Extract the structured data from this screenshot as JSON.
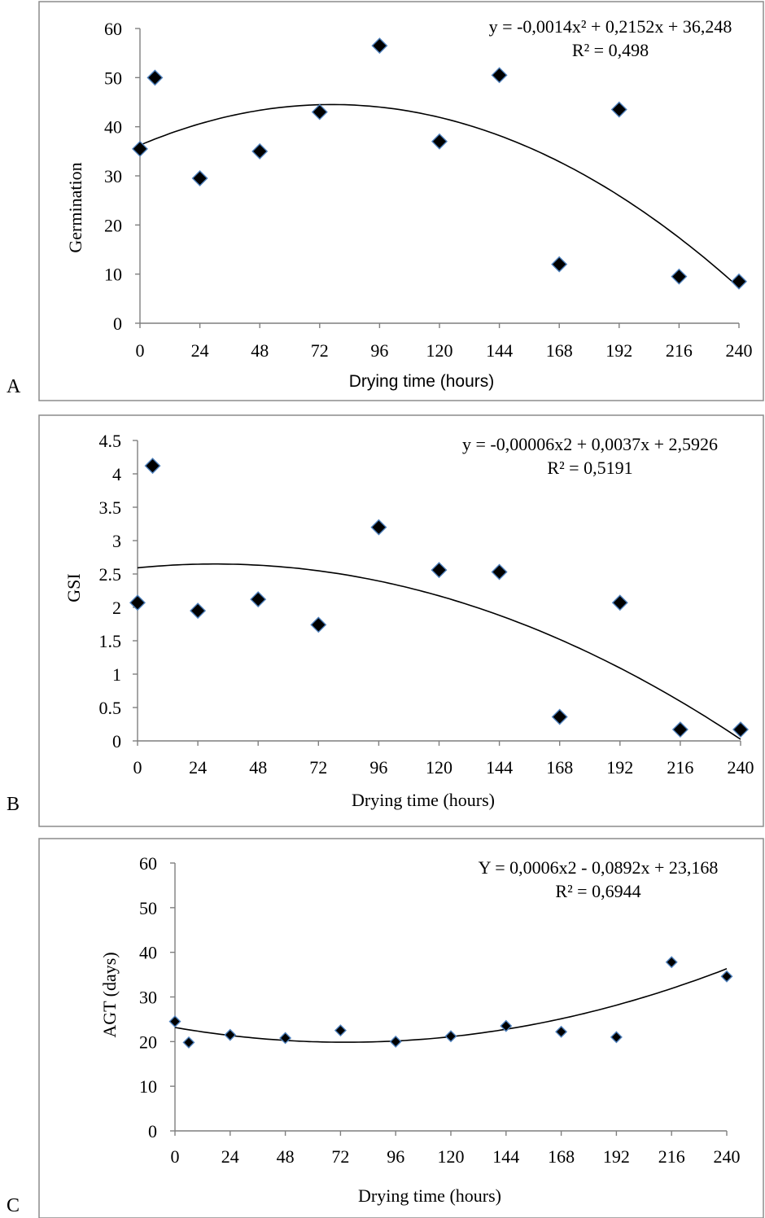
{
  "chart_data": [
    {
      "panel": "A",
      "type": "scatter",
      "title": "",
      "xlabel": "Drying time (hours)",
      "ylabel": "Germination",
      "xlim": [
        0,
        240
      ],
      "ylim": [
        0,
        60
      ],
      "x_ticks": [
        "0",
        "24",
        "48",
        "72",
        "96",
        "120",
        "144",
        "168",
        "192",
        "216",
        "240"
      ],
      "y_ticks": [
        "0",
        "10",
        "20",
        "30",
        "40",
        "50",
        "60"
      ],
      "trend_equation": "y = -0,0014x² + 0,2152x + 36,248",
      "r_squared": "R² = 0,498",
      "trend_coefficients": [
        -0.0014,
        0.2152,
        36.248
      ],
      "grid": false,
      "points": [
        {
          "x": 0,
          "y": 35.5
        },
        {
          "x": 6,
          "y": 50
        },
        {
          "x": 24,
          "y": 29.5
        },
        {
          "x": 48,
          "y": 35
        },
        {
          "x": 72,
          "y": 43
        },
        {
          "x": 96,
          "y": 56.5
        },
        {
          "x": 120,
          "y": 37
        },
        {
          "x": 144,
          "y": 50.5
        },
        {
          "x": 168,
          "y": 12
        },
        {
          "x": 192,
          "y": 43.5
        },
        {
          "x": 216,
          "y": 9.5
        },
        {
          "x": 240,
          "y": 8.5
        }
      ]
    },
    {
      "panel": "B",
      "type": "scatter",
      "title": "",
      "xlabel": "Drying time (hours)",
      "ylabel": "GSI",
      "xlim": [
        0,
        240
      ],
      "ylim": [
        0,
        4.5
      ],
      "x_ticks": [
        "0",
        "24",
        "48",
        "72",
        "96",
        "120",
        "144",
        "168",
        "192",
        "216",
        "240"
      ],
      "y_ticks": [
        "0",
        "0.5",
        "1",
        "1.5",
        "2",
        "2.5",
        "3",
        "3.5",
        "4",
        "4.5"
      ],
      "trend_equation": "y = -0,00006x2 + 0,0037x + 2,5926",
      "r_squared": "R² = 0,5191",
      "trend_coefficients": [
        -6e-05,
        0.0037,
        2.5926
      ],
      "grid": false,
      "points": [
        {
          "x": 0,
          "y": 2.07
        },
        {
          "x": 6,
          "y": 4.12
        },
        {
          "x": 24,
          "y": 1.95
        },
        {
          "x": 48,
          "y": 2.12
        },
        {
          "x": 72,
          "y": 1.74
        },
        {
          "x": 96,
          "y": 3.2
        },
        {
          "x": 120,
          "y": 2.56
        },
        {
          "x": 144,
          "y": 2.53
        },
        {
          "x": 168,
          "y": 0.36
        },
        {
          "x": 192,
          "y": 2.07
        },
        {
          "x": 216,
          "y": 0.17
        },
        {
          "x": 240,
          "y": 0.17
        }
      ]
    },
    {
      "panel": "C",
      "type": "scatter",
      "title": "",
      "xlabel": "Drying time (hours)",
      "ylabel": "AGT (days)",
      "xlim": [
        0,
        240
      ],
      "ylim": [
        0,
        60
      ],
      "x_ticks": [
        "0",
        "24",
        "48",
        "72",
        "96",
        "120",
        "144",
        "168",
        "192",
        "216",
        "240"
      ],
      "y_ticks": [
        "0",
        "10",
        "20",
        "30",
        "40",
        "50",
        "60"
      ],
      "trend_equation": "Y = 0,0006x2 - 0,0892x + 23,168",
      "r_squared": "R² = 0,6944",
      "trend_coefficients": [
        0.0006,
        -0.0892,
        23.168
      ],
      "grid": false,
      "points": [
        {
          "x": 0,
          "y": 24.5
        },
        {
          "x": 6,
          "y": 19.8
        },
        {
          "x": 24,
          "y": 21.5
        },
        {
          "x": 48,
          "y": 20.8
        },
        {
          "x": 72,
          "y": 22.5
        },
        {
          "x": 96,
          "y": 20
        },
        {
          "x": 120,
          "y": 21.2
        },
        {
          "x": 144,
          "y": 23.5
        },
        {
          "x": 168,
          "y": 22.2
        },
        {
          "x": 192,
          "y": 21
        },
        {
          "x": 216,
          "y": 37.8
        },
        {
          "x": 240,
          "y": 34.6
        }
      ]
    }
  ]
}
